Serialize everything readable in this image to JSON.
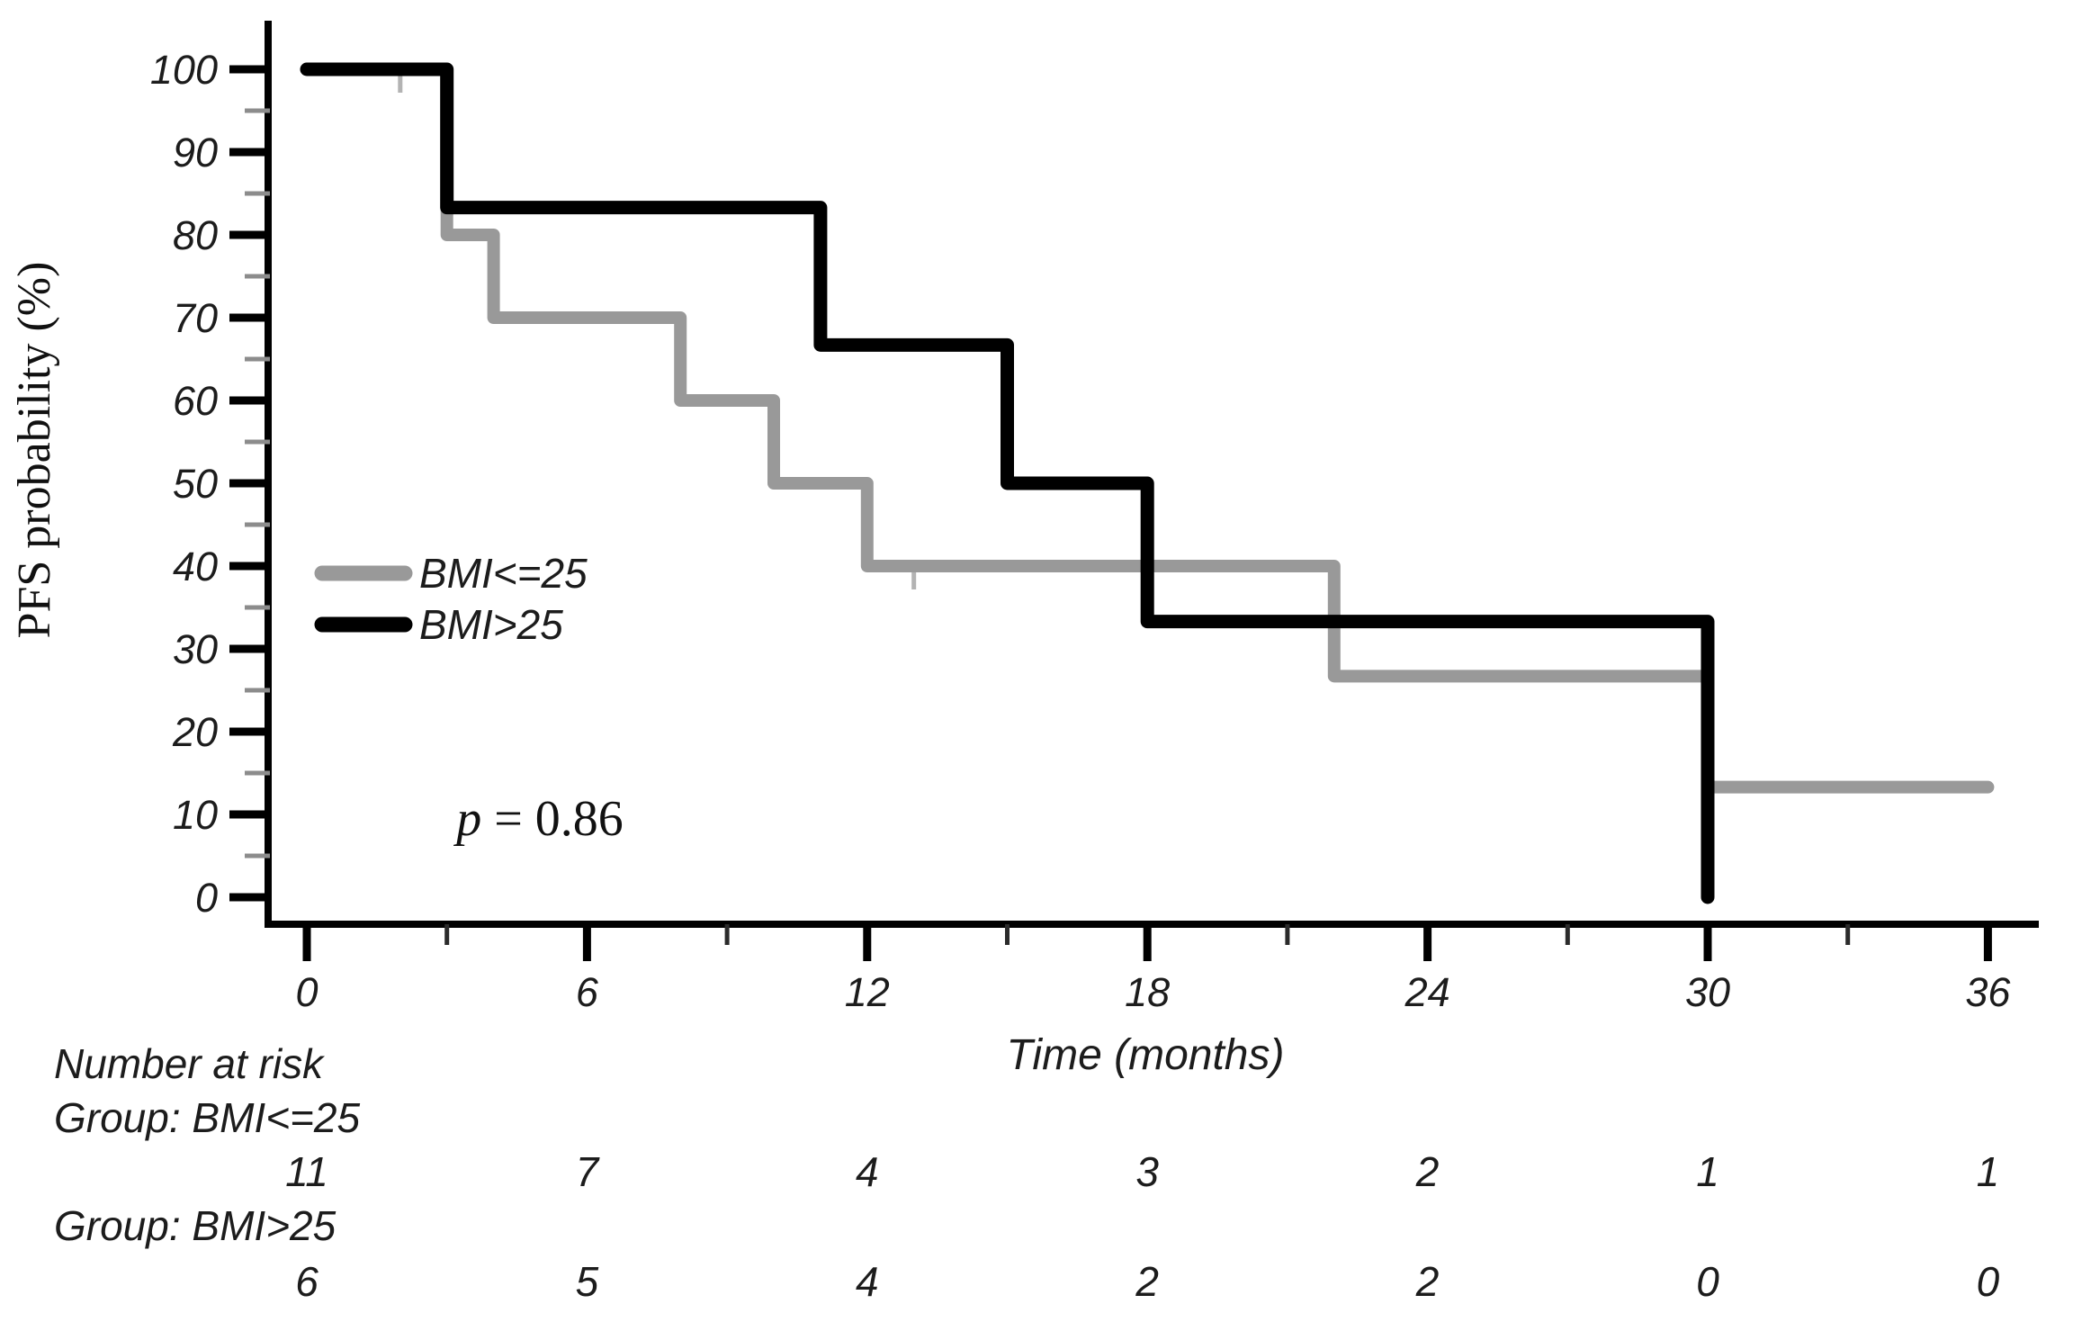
{
  "figure": {
    "background": "#ffffff",
    "text_color": "#1c1c1c",
    "axis_color": "#000000",
    "minor_tick_color_y": "#8c8c8c",
    "minor_tick_color_x": "#2b2b2b",
    "censor_color": "#b3b3b3"
  },
  "chart_data": {
    "type": "line",
    "subtype": "kaplan-meier-step",
    "title": "",
    "xlabel": "Time (months)",
    "ylabel": "PFS probability (%)",
    "xlim": [
      0,
      36
    ],
    "ylim": [
      0,
      100
    ],
    "x_major_ticks": [
      0,
      6,
      12,
      18,
      24,
      30,
      36
    ],
    "x_minor_ticks": [
      3,
      9,
      15,
      21,
      27,
      33
    ],
    "y_major_ticks": [
      0,
      10,
      20,
      30,
      40,
      50,
      60,
      70,
      80,
      90,
      100
    ],
    "y_minor_ticks": [
      5,
      15,
      25,
      35,
      45,
      55,
      65,
      75,
      85,
      95
    ],
    "grid": false,
    "legend_position": "left-middle",
    "annotation": {
      "symbol": "p",
      "rest": " = 0.86",
      "text": "p = 0.86"
    },
    "series": [
      {
        "name": "BMI<=25",
        "color": "#999999",
        "line_width": 14,
        "points": [
          [
            0,
            100
          ],
          [
            3,
            100
          ],
          [
            3,
            80
          ],
          [
            4,
            80
          ],
          [
            4,
            70
          ],
          [
            8,
            70
          ],
          [
            8,
            60
          ],
          [
            10,
            60
          ],
          [
            10,
            50
          ],
          [
            12,
            50
          ],
          [
            12,
            40
          ],
          [
            22,
            40
          ],
          [
            22,
            26.7
          ],
          [
            30,
            26.7
          ],
          [
            30,
            13.3
          ],
          [
            36,
            13.3
          ]
        ],
        "censor_marks": [
          [
            2,
            100
          ],
          [
            13,
            40
          ]
        ]
      },
      {
        "name": "BMI>25",
        "color": "#000000",
        "line_width": 15,
        "points": [
          [
            0,
            100
          ],
          [
            3,
            100
          ],
          [
            3,
            83.3
          ],
          [
            11,
            83.3
          ],
          [
            11,
            66.7
          ],
          [
            15,
            66.7
          ],
          [
            15,
            50
          ],
          [
            18,
            50
          ],
          [
            18,
            33.3
          ],
          [
            30,
            33.3
          ],
          [
            30,
            0
          ]
        ],
        "censor_marks": []
      }
    ]
  },
  "risk_table": {
    "title": "Number at risk",
    "times": [
      0,
      6,
      12,
      18,
      24,
      30,
      36
    ],
    "groups": [
      {
        "label": "Group: BMI<=25",
        "counts": [
          "11",
          "7",
          "4",
          "3",
          "2",
          "1",
          "1"
        ]
      },
      {
        "label": "Group: BMI>25",
        "counts": [
          "6",
          "5",
          "4",
          "2",
          "2",
          "0",
          "0"
        ]
      }
    ]
  }
}
